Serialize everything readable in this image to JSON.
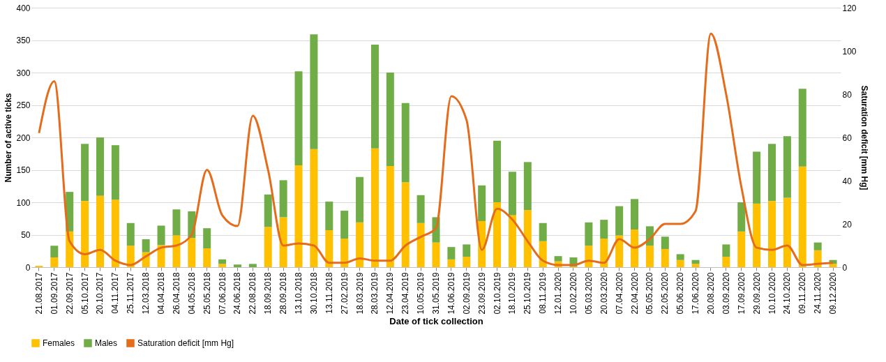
{
  "chart_data": {
    "type": "bar",
    "stacked": true,
    "xlabel": "Date of tick collection",
    "ylabel": "Number of active ticks",
    "y2label": "Saturation deficit [mm Hg]",
    "categories": [
      "21.08.2017",
      "01.09.2017",
      "22.09.2017",
      "05.10.2017",
      "20.10.2017",
      "04.11.2017",
      "25.11.2017",
      "12.03.2018",
      "04.04.2018",
      "26.04.2018",
      "04.05.2018",
      "25.05.2018",
      "07.06.2018",
      "24.06.2018",
      "22.08.2018",
      "18.09.2018",
      "28.09.2018",
      "13.10.2018",
      "30.10.2018",
      "13.11.2018",
      "27.02.2019",
      "18.03.2019",
      "28.03.2019",
      "12.04.2019",
      "23.04.2019",
      "10.05.2019",
      "31.05.2019",
      "14.06.2019",
      "02.09.2019",
      "23.09.2019",
      "02.10.2019",
      "18.10.2019",
      "25.10.2019",
      "08.11.2019",
      "12.01.2020",
      "10.02.2020",
      "05.03.2020",
      "20.03.2020",
      "07.04.2020",
      "22.04.2020",
      "05.05.2020",
      "22.05.2020",
      "05.06.2020",
      "17.06.2020",
      "20.08.2020",
      "03.09.2020",
      "17.09.2020",
      "29.09.2020",
      "10.10.2020",
      "24.10.2020",
      "09.11.2020",
      "24.11.2020",
      "09.12.2020"
    ],
    "series": [
      {
        "name": "Females",
        "color": "#ffc000",
        "values": [
          2,
          15,
          55,
          102,
          110,
          104,
          33,
          23,
          34,
          49,
          45,
          29,
          5,
          0,
          0,
          62,
          77,
          157,
          182,
          57,
          44,
          69,
          183,
          156,
          131,
          68,
          38,
          12,
          16,
          71,
          100,
          80,
          88,
          40,
          9,
          1,
          33,
          44,
          49,
          58,
          33,
          28,
          11,
          5,
          0,
          16,
          55,
          98,
          102,
          107,
          155,
          26,
          5
        ]
      },
      {
        "name": "Males",
        "color": "#70ad47",
        "values": [
          0,
          18,
          61,
          88,
          90,
          84,
          35,
          20,
          30,
          40,
          41,
          31,
          7,
          4,
          5,
          50,
          57,
          145,
          177,
          44,
          43,
          70,
          160,
          144,
          122,
          43,
          39,
          19,
          19,
          55,
          95,
          67,
          74,
          28,
          8,
          14,
          36,
          29,
          45,
          47,
          30,
          19,
          9,
          6,
          0,
          19,
          45,
          80,
          88,
          95,
          120,
          12,
          6
        ]
      },
      {
        "name": "Saturation deficit [mm Hg]",
        "type": "line",
        "axis": "y2",
        "color": "#e46c1b",
        "values": [
          62,
          86,
          12,
          6,
          8,
          3,
          1,
          5,
          9,
          10,
          15,
          45,
          24,
          19,
          70,
          45,
          10,
          11,
          10,
          2,
          2,
          4,
          3,
          3,
          10,
          14,
          18,
          79,
          68,
          8,
          27,
          22,
          12,
          3,
          1,
          1,
          3,
          2,
          13,
          9,
          13,
          20,
          20,
          26,
          108,
          80,
          37,
          9,
          8,
          10,
          1,
          1.5,
          2
        ]
      }
    ],
    "ylim": [
      0,
      400
    ],
    "yticks": [
      0,
      50,
      100,
      150,
      200,
      250,
      300,
      350,
      400
    ],
    "y2lim": [
      0,
      120
    ],
    "y2ticks": [
      0,
      20,
      40,
      60,
      80,
      100,
      120
    ],
    "grid": "y",
    "legend": "bottom"
  }
}
